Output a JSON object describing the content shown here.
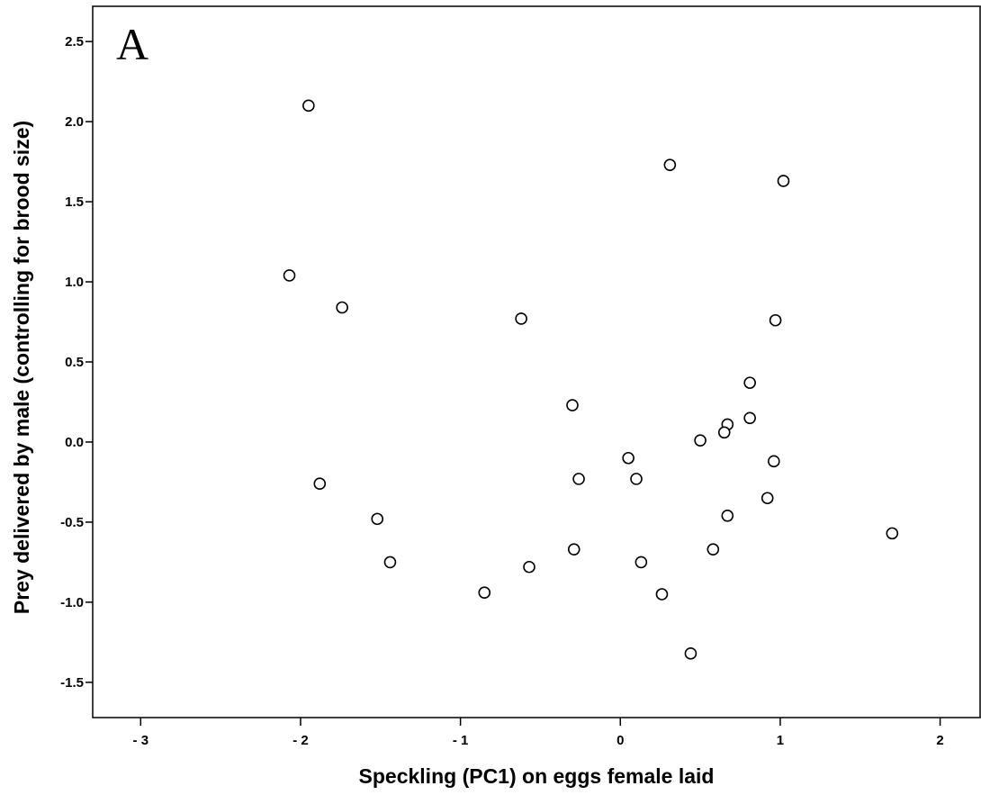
{
  "chart_data": {
    "type": "scatter",
    "panel_label": "A",
    "title": "",
    "xlabel": "Speckling (PC1) on eggs female laid",
    "ylabel": "Prey delivered by male (controlling for brood size)",
    "xlim": [
      -3.3,
      2.25
    ],
    "ylim": [
      -1.72,
      2.72
    ],
    "x_ticks": [
      -3,
      -2,
      -1,
      0,
      1,
      2
    ],
    "x_tick_labels": [
      "- 3",
      "- 2",
      "- 1",
      "0",
      "1",
      "2"
    ],
    "y_ticks": [
      2.5,
      2.0,
      1.5,
      1.0,
      0.5,
      0.0,
      -0.5,
      -1.0,
      -1.5
    ],
    "y_tick_labels": [
      "2.5",
      "2.0",
      "1.5",
      "1.0",
      "0.5",
      "0.0",
      "-0.5",
      "-1.0",
      "-1.5"
    ],
    "grid": false,
    "marker": "open-circle",
    "points": [
      {
        "x": -1.95,
        "y": 2.1
      },
      {
        "x": 0.31,
        "y": 1.73
      },
      {
        "x": 1.02,
        "y": 1.63
      },
      {
        "x": -2.07,
        "y": 1.04
      },
      {
        "x": -1.74,
        "y": 0.84
      },
      {
        "x": -0.62,
        "y": 0.77
      },
      {
        "x": 0.97,
        "y": 0.76
      },
      {
        "x": 0.81,
        "y": 0.37
      },
      {
        "x": -0.3,
        "y": 0.23
      },
      {
        "x": 0.81,
        "y": 0.15
      },
      {
        "x": 0.67,
        "y": 0.11
      },
      {
        "x": 0.65,
        "y": 0.06
      },
      {
        "x": 0.5,
        "y": 0.01
      },
      {
        "x": 0.05,
        "y": -0.1
      },
      {
        "x": 0.96,
        "y": -0.12
      },
      {
        "x": -0.26,
        "y": -0.23
      },
      {
        "x": 0.1,
        "y": -0.23
      },
      {
        "x": -1.88,
        "y": -0.26
      },
      {
        "x": 0.92,
        "y": -0.35
      },
      {
        "x": 0.67,
        "y": -0.46
      },
      {
        "x": -1.52,
        "y": -0.48
      },
      {
        "x": 1.7,
        "y": -0.57
      },
      {
        "x": -0.29,
        "y": -0.67
      },
      {
        "x": 0.58,
        "y": -0.67
      },
      {
        "x": -1.44,
        "y": -0.75
      },
      {
        "x": 0.13,
        "y": -0.75
      },
      {
        "x": -0.57,
        "y": -0.78
      },
      {
        "x": -0.85,
        "y": -0.94
      },
      {
        "x": 0.26,
        "y": -0.95
      },
      {
        "x": 0.44,
        "y": -1.32
      }
    ]
  }
}
